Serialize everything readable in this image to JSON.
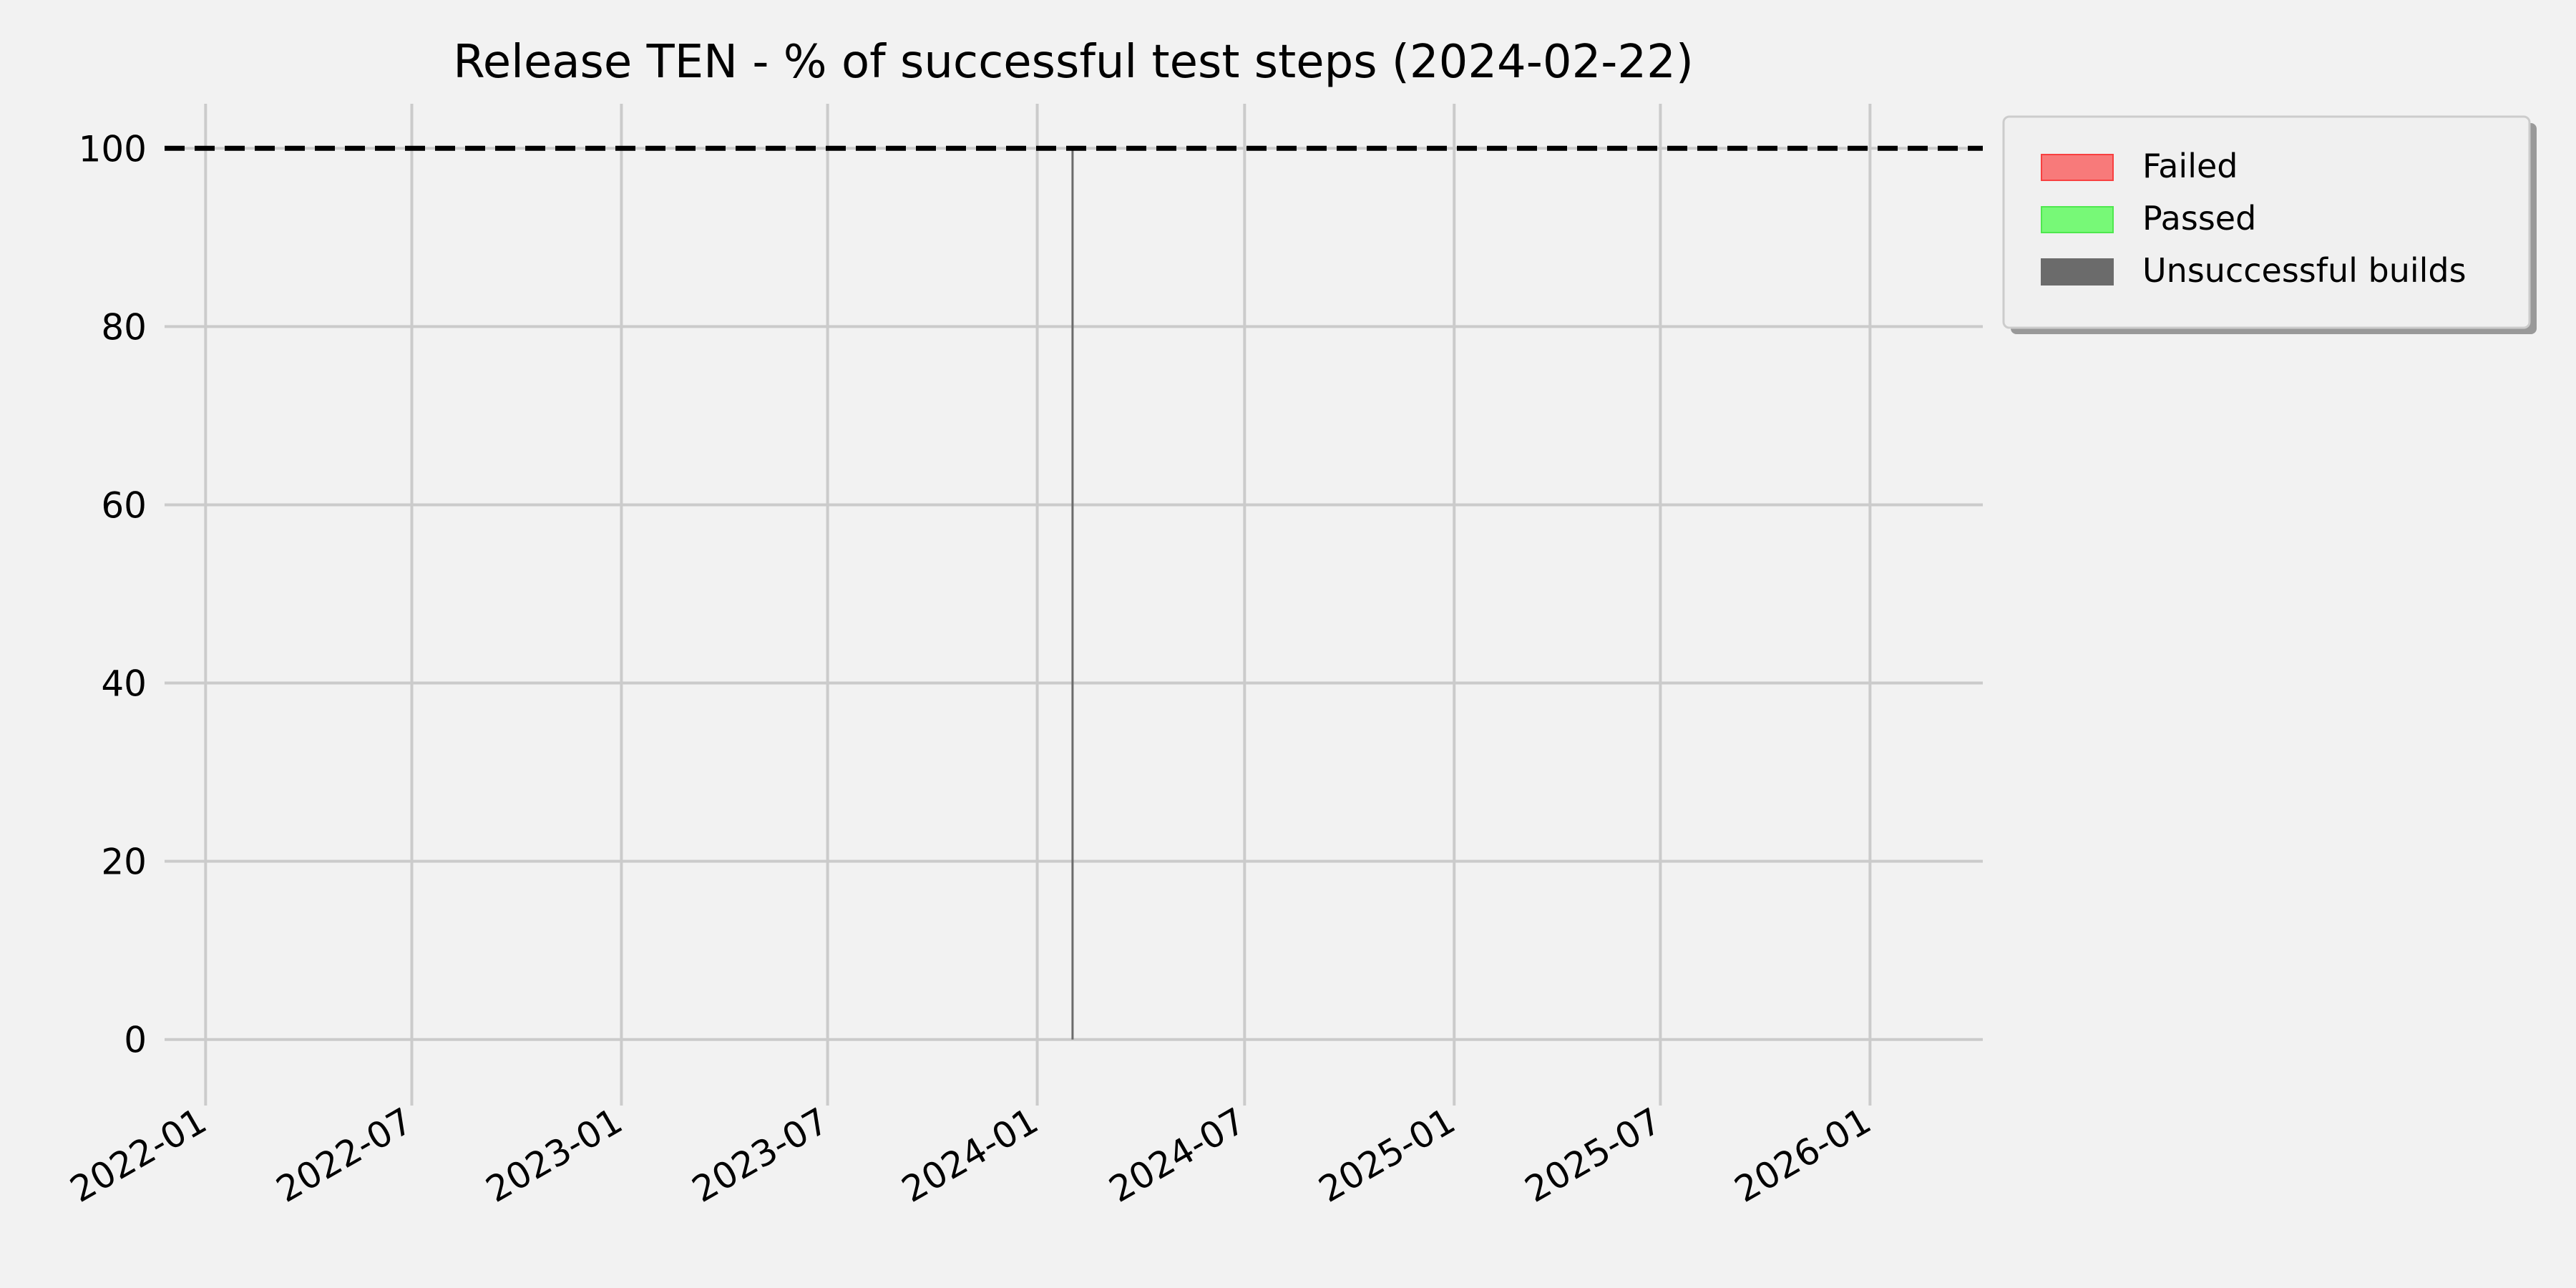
{
  "chart_data": {
    "type": "bar",
    "title": "Release TEN - % of successful test steps (2024-02-22)",
    "xlabel": "",
    "ylabel": "",
    "x_axis_type": "date",
    "xlim": [
      "2021-11-26",
      "2026-04-10"
    ],
    "ylim": [
      -5,
      105
    ],
    "x_ticks": [
      "2022-01",
      "2022-07",
      "2023-01",
      "2023-07",
      "2024-01",
      "2024-07",
      "2025-01",
      "2025-07",
      "2026-01"
    ],
    "y_ticks": [
      0,
      20,
      40,
      60,
      80,
      100
    ],
    "grid": true,
    "reference_line": {
      "y": 100,
      "style": "dashed",
      "color": "#000000"
    },
    "legend": {
      "placement": "outside-top-right",
      "entries": [
        "Failed",
        "Passed",
        "Unsuccessful builds"
      ]
    },
    "series": [
      {
        "name": "Failed",
        "color": "#f87a7a",
        "points": []
      },
      {
        "name": "Passed",
        "color": "#77f977",
        "points": []
      },
      {
        "name": "Unsuccessful builds",
        "color": "#6b6b6b",
        "points": [
          {
            "x": "2024-02-01",
            "y": 100
          }
        ]
      }
    ]
  }
}
